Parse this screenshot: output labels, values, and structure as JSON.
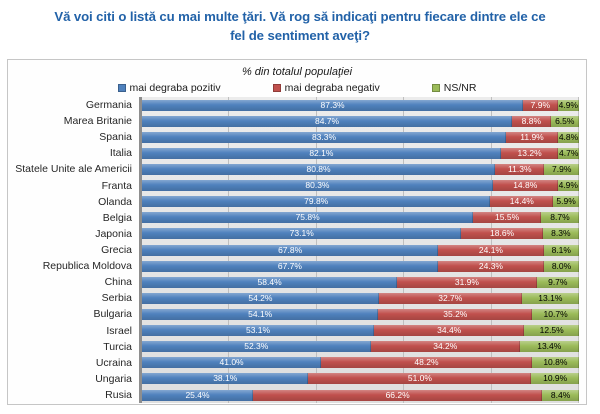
{
  "title": {
    "line1": "Vă  voi citi o listă cu mai multe ţări. Vă rog să indicaţi pentru fiecare dintre ele ce",
    "line2": "fel de sentiment aveţi?"
  },
  "chart": {
    "subtitle": "% din totalul populaţiei",
    "legend": [
      {
        "label": "mai degraba pozitiv",
        "color": "#4F81BD"
      },
      {
        "label": "mai degraba negativ",
        "color": "#C0504D"
      },
      {
        "label": "NS/NR",
        "color": "#9BBB59"
      }
    ]
  },
  "chart_data": {
    "type": "bar",
    "orientation": "horizontal",
    "stacked": true,
    "title": "Vă voi citi o listă cu mai multe ţări. Vă rog să indicaţi pentru fiecare dintre ele ce fel de sentiment aveţi?",
    "subtitle": "% din totalul populaţiei",
    "xlim": [
      0,
      100
    ],
    "grid": true,
    "gridlines_percent": [
      20,
      40,
      60,
      80,
      100
    ],
    "legend_position": "top",
    "value_suffix": "%",
    "categories": [
      "Germania",
      "Marea Britanie",
      "Spania",
      "Italia",
      "Statele Unite ale Americii",
      "Franta",
      "Olanda",
      "Belgia",
      "Japonia",
      "Grecia",
      "Republica Moldova",
      "China",
      "Serbia",
      "Bulgaria",
      "Israel",
      "Turcia",
      "Ucraina",
      "Ungaria",
      "Rusia"
    ],
    "series": [
      {
        "name": "mai degraba pozitiv",
        "color": "#4F81BD",
        "label_color": "#FFFFFF",
        "values": [
          87.3,
          84.7,
          83.3,
          82.1,
          80.8,
          80.3,
          79.8,
          75.8,
          73.1,
          67.8,
          67.7,
          58.4,
          54.2,
          54.1,
          53.1,
          52.3,
          41.0,
          38.1,
          25.4
        ]
      },
      {
        "name": "mai degraba negativ",
        "color": "#C0504D",
        "label_color": "#FFFFFF",
        "values": [
          7.9,
          8.8,
          11.9,
          13.2,
          11.3,
          14.8,
          14.4,
          15.5,
          18.6,
          24.1,
          24.3,
          31.9,
          32.7,
          35.2,
          34.4,
          34.2,
          48.2,
          51.0,
          66.2
        ]
      },
      {
        "name": "NS/NR",
        "color": "#9BBB59",
        "label_color": "#000000",
        "values": [
          4.9,
          6.5,
          4.8,
          4.7,
          7.9,
          4.9,
          5.9,
          8.7,
          8.3,
          8.1,
          8.0,
          9.7,
          13.1,
          10.7,
          12.5,
          13.4,
          10.8,
          10.9,
          8.4
        ]
      }
    ]
  }
}
